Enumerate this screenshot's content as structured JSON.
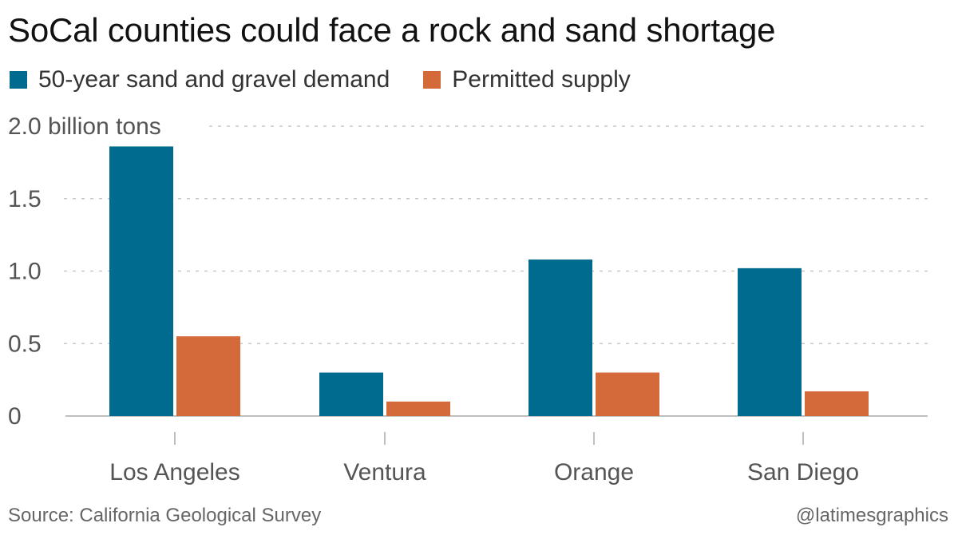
{
  "title": "SoCal counties could face a rock and sand shortage",
  "source": "Source: California Geological Survey",
  "credit": "@latimesgraphics",
  "colors": {
    "demand": "#016b8f",
    "supply": "#d4693a",
    "grid": "#c8c8c8",
    "axis": "#aaaaaa"
  },
  "chart_data": {
    "type": "bar",
    "categories": [
      "Los Angeles",
      "Ventura",
      "Orange",
      "San Diego"
    ],
    "series": [
      {
        "name": "50-year sand and gravel demand",
        "values": [
          1.86,
          0.3,
          1.08,
          1.02
        ]
      },
      {
        "name": "Permitted supply",
        "values": [
          0.55,
          0.1,
          0.3,
          0.17
        ]
      }
    ],
    "ylim": [
      0,
      2.0
    ],
    "yticks": [
      {
        "value": 0,
        "label": "0"
      },
      {
        "value": 0.5,
        "label": "0.5"
      },
      {
        "value": 1.0,
        "label": "1.0"
      },
      {
        "value": 1.5,
        "label": "1.5"
      },
      {
        "value": 2.0,
        "label": "2.0 billion tons"
      }
    ],
    "grid": true,
    "legend_position": "top-left"
  }
}
